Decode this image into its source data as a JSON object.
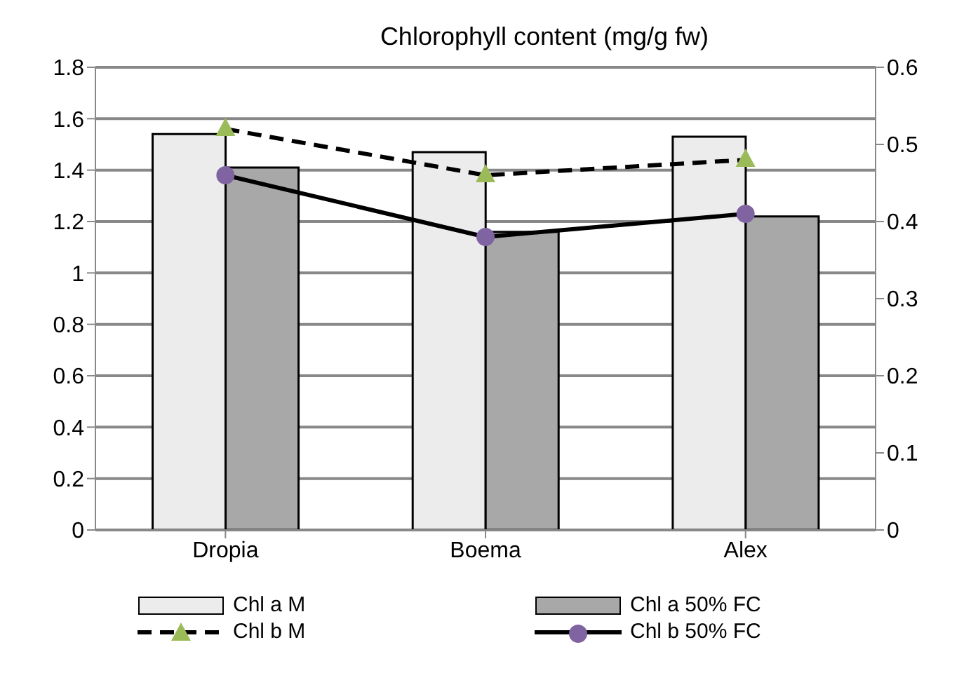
{
  "chart_data": {
    "type": "bar",
    "title": "Chlorophyll content (mg/g fw)",
    "categories": [
      "Dropia",
      "Boema",
      "Alex"
    ],
    "series": [
      {
        "name": "Chl a M",
        "color": "#ececec",
        "values": [
          1.54,
          1.47,
          1.53
        ]
      },
      {
        "name": "Chl a 50% FC",
        "color": "#a8a8a8",
        "values": [
          1.41,
          1.16,
          1.22
        ]
      },
      {
        "name": "Chl b M",
        "type": "line",
        "axis": "y2",
        "color": "#9bbb59",
        "marker": "triangle",
        "line_style": "dashed",
        "values": [
          0.52,
          0.46,
          0.48
        ]
      },
      {
        "name": "Chl b 50% FC",
        "type": "line",
        "axis": "y2",
        "color": "#8064a2",
        "marker": "circle",
        "line_style": "solid",
        "values": [
          0.46,
          0.38,
          0.41
        ]
      }
    ],
    "ylim": [
      0,
      1.8
    ],
    "yticks": [
      0,
      0.2,
      0.4,
      0.6,
      0.8,
      1,
      1.2,
      1.4,
      1.6,
      1.8
    ],
    "y2lim": [
      0,
      0.6
    ],
    "y2ticks": [
      0,
      0.1,
      0.2,
      0.3,
      0.4,
      0.5,
      0.6
    ],
    "grid": "y",
    "legend": "bottom"
  }
}
